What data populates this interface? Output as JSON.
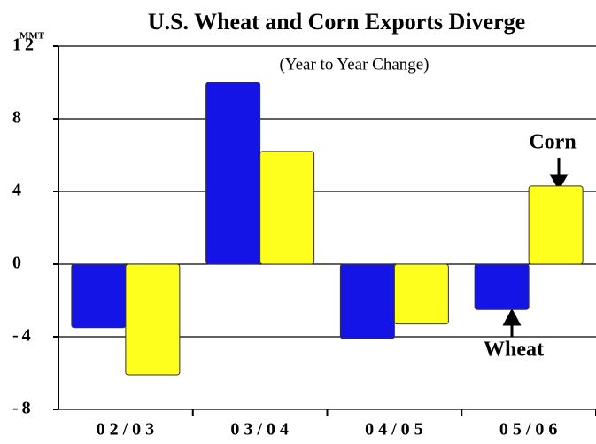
{
  "chart_data": {
    "type": "bar",
    "title": "U.S. Wheat and Corn Exports Diverge",
    "subtitle": "(Year to Year Change)",
    "y_label": "MMT",
    "categories": [
      "02/03",
      "03/04",
      "04/05",
      "05/06"
    ],
    "series": [
      {
        "name": "Wheat",
        "color": "#1414e6",
        "values": [
          -3.5,
          10,
          -4.1,
          -2.5
        ]
      },
      {
        "name": "Corn",
        "color": "#ffff1e",
        "values": [
          -6.1,
          6.2,
          -3.3,
          4.3
        ]
      }
    ],
    "ylim": [
      -8,
      12
    ],
    "yticks": [
      -8,
      -4,
      0,
      4,
      8,
      12
    ],
    "grid": true
  }
}
